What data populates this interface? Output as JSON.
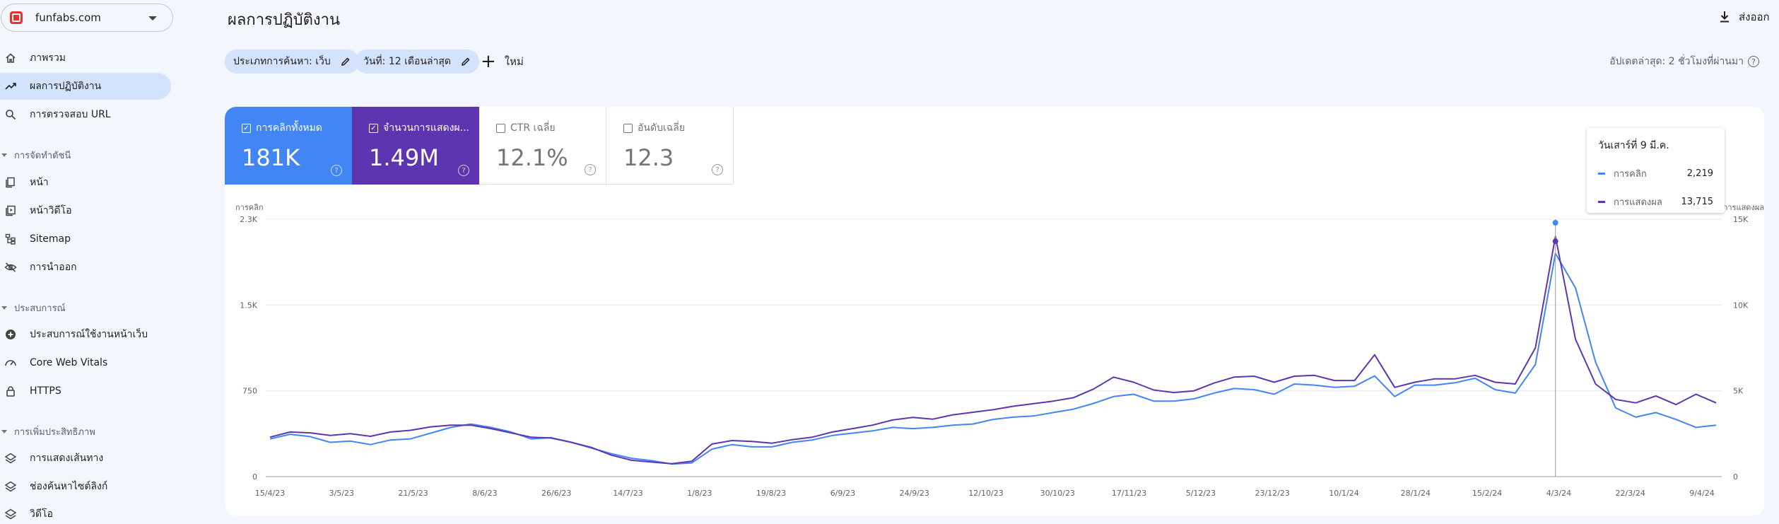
{
  "property": {
    "name": "funfabs.com"
  },
  "nav": {
    "overview": "ภาพรวม",
    "performance": "ผลการปฏิบัติงาน",
    "url_inspection": "การตรวจสอบ URL",
    "section_indexing": "การจัดทำดัชนี",
    "pages": "หน้า",
    "video_pages": "หน้าวิดีโอ",
    "sitemap": "Sitemap",
    "removals": "การนำออก",
    "section_experience": "ประสบการณ์",
    "page_experience": "ประสบการณ์ใช้งานหน้าเว็บ",
    "core_web_vitals": "Core Web Vitals",
    "https": "HTTPS",
    "section_enhancements": "การเพิ่มประสิทธิภาพ",
    "breadcrumbs": "การแสดงเส้นทาง",
    "sitelinks_searchbox": "ช่องค้นหาไซต์ลิงก์",
    "videos": "วิดีโอ"
  },
  "header": {
    "title": "ผลการปฏิบัติงาน",
    "export": "ส่งออก"
  },
  "filters": {
    "search_type": "ประเภทการค้นหา: เว็บ",
    "date": "วันที่: 12 เดือนล่าสุด",
    "new": "ใหม่",
    "updated": "อัปเดตล่าสุด: 2 ชั่วโมงที่ผ่านมา",
    "help_symbol": "?"
  },
  "metrics": {
    "clicks": {
      "label": "การคลิกทั้งหมด",
      "value": "181K",
      "checked": true,
      "color": "#4285f4"
    },
    "impressions": {
      "label": "จำนวนการแสดงผ...",
      "value": "1.49M",
      "checked": true,
      "color": "#5e35b1"
    },
    "ctr": {
      "label": "CTR เฉลี่ย",
      "value": "12.1%",
      "checked": false
    },
    "position": {
      "label": "อันดับเฉลี่ย",
      "value": "12.3",
      "checked": false
    }
  },
  "tooltip": {
    "date": "วันเสาร์ที่ 9 มี.ค.",
    "clicks_label": "การคลิก",
    "clicks_value": "2,219",
    "impr_label": "การแสดงผล",
    "impr_value": "13,715"
  },
  "chart_data": {
    "type": "line",
    "left_axis_label": "การคลิก",
    "right_axis_label": "การแสดงผล",
    "left_ticks": [
      "0",
      "750",
      "1.5K",
      "2.3K"
    ],
    "left_ylim": [
      0,
      2250
    ],
    "right_ticks": [
      "0",
      "5K",
      "10K",
      "15K"
    ],
    "right_ylim": [
      0,
      15000
    ],
    "x_ticks": [
      "15/4/23",
      "3/5/23",
      "21/5/23",
      "8/6/23",
      "26/6/23",
      "14/7/23",
      "1/8/23",
      "19/8/23",
      "6/9/23",
      "24/9/23",
      "12/10/23",
      "30/10/23",
      "17/11/23",
      "5/12/23",
      "23/12/23",
      "10/1/24",
      "28/1/24",
      "15/2/24",
      "4/3/24",
      "22/3/24",
      "9/4/24"
    ],
    "series": [
      {
        "name": "การคลิก",
        "axis": "left",
        "color": "#4285f4",
        "values": [
          330,
          370,
          350,
          300,
          310,
          280,
          320,
          330,
          380,
          430,
          460,
          430,
          390,
          330,
          340,
          300,
          250,
          200,
          160,
          140,
          110,
          120,
          240,
          280,
          260,
          260,
          300,
          320,
          360,
          380,
          400,
          430,
          420,
          430,
          450,
          460,
          500,
          520,
          530,
          560,
          590,
          640,
          700,
          720,
          660,
          660,
          680,
          730,
          770,
          760,
          720,
          810,
          800,
          780,
          790,
          880,
          700,
          800,
          800,
          820,
          860,
          760,
          730,
          980,
          1950,
          1650,
          1000,
          600,
          520,
          560,
          500,
          430,
          450
        ]
      },
      {
        "name": "การแสดงผล",
        "axis": "right",
        "color": "#5e35b1",
        "values": [
          2300,
          2600,
          2550,
          2400,
          2500,
          2350,
          2600,
          2700,
          2900,
          3000,
          3000,
          2800,
          2550,
          2300,
          2250,
          2000,
          1700,
          1250,
          950,
          850,
          750,
          900,
          1900,
          2100,
          2050,
          1950,
          2150,
          2300,
          2600,
          2800,
          3000,
          3300,
          3450,
          3350,
          3600,
          3750,
          3900,
          4100,
          4250,
          4400,
          4600,
          5100,
          5800,
          5500,
          5050,
          4900,
          5000,
          5450,
          5800,
          5850,
          5500,
          5850,
          5900,
          5600,
          5600,
          7100,
          5200,
          5500,
          5700,
          5700,
          5900,
          5500,
          5400,
          7500,
          14000,
          8000,
          5400,
          4500,
          4300,
          4700,
          4200,
          4800,
          4300
        ]
      }
    ],
    "highlight": {
      "label": "วันเสาร์ที่ 9 มี.ค.",
      "clicks": 2219,
      "impressions": 13715
    }
  }
}
